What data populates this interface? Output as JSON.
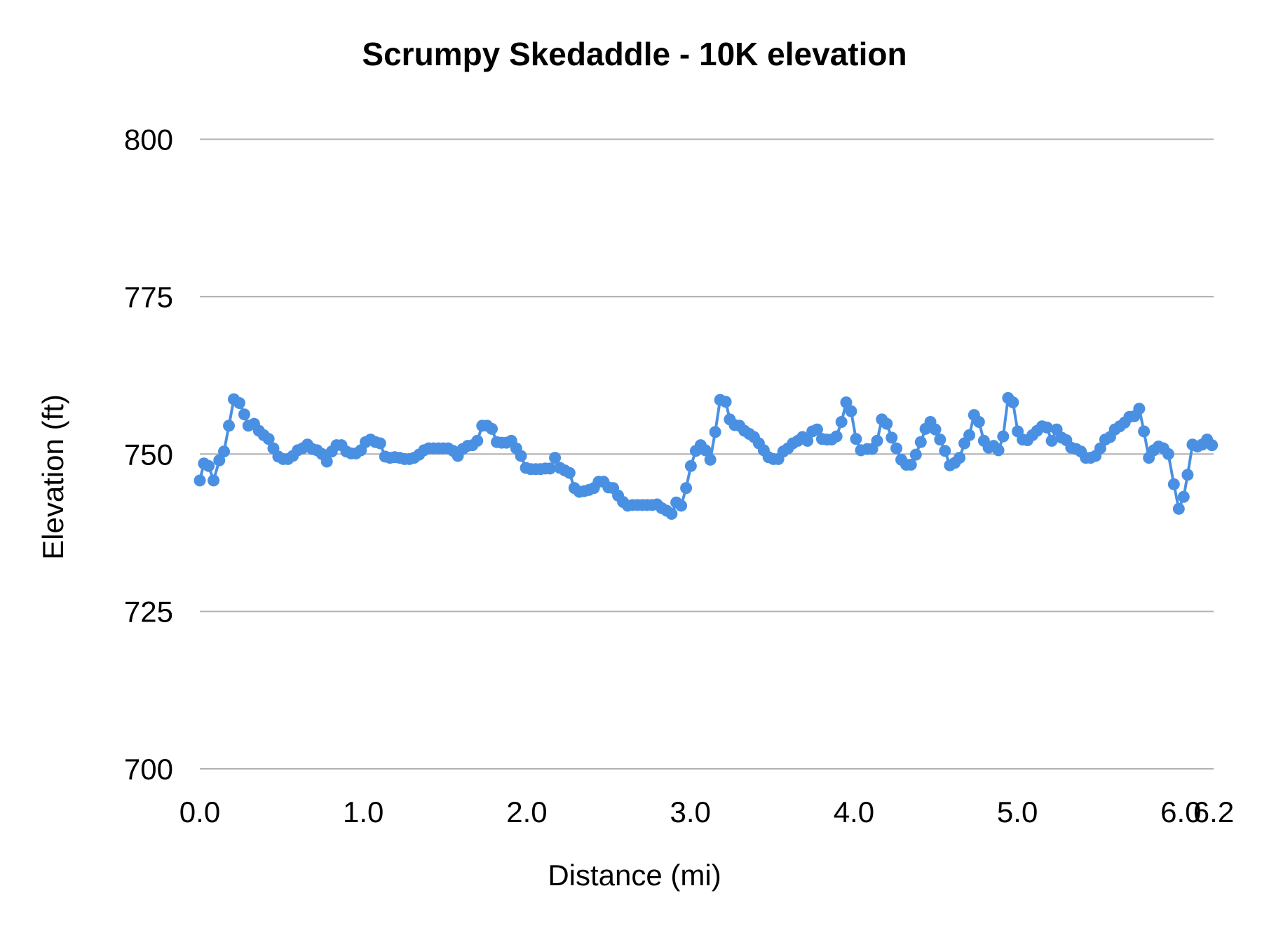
{
  "chart_data": {
    "type": "line",
    "title": "Scrumpy Skedaddle - 10K elevation",
    "xlabel": "Distance (mi)",
    "ylabel": "Elevation (ft)",
    "xlim": [
      0,
      6.2
    ],
    "ylim": [
      700,
      800
    ],
    "x_ticks": [
      "0.0",
      "1.0",
      "2.0",
      "3.0",
      "4.0",
      "5.0",
      "6.0",
      "6.2"
    ],
    "x_tick_values": [
      0,
      1,
      2,
      3,
      4,
      5,
      6,
      6.2
    ],
    "y_ticks": [
      "700",
      "725",
      "750",
      "775",
      "800"
    ],
    "y_tick_values": [
      700,
      725,
      750,
      775,
      800
    ],
    "grid": "horizontal",
    "markers": true,
    "color": "#4a90e2",
    "gridline_color": "#b0b0b0",
    "points": [
      [
        0.0,
        745.8
      ],
      [
        0.025,
        748.5
      ],
      [
        0.054,
        748.1
      ],
      [
        0.084,
        745.8
      ],
      [
        0.119,
        749.0
      ],
      [
        0.148,
        750.4
      ],
      [
        0.178,
        754.5
      ],
      [
        0.208,
        758.7
      ],
      [
        0.242,
        758.1
      ],
      [
        0.272,
        756.3
      ],
      [
        0.297,
        754.5
      ],
      [
        0.332,
        754.8
      ],
      [
        0.361,
        753.7
      ],
      [
        0.391,
        753.0
      ],
      [
        0.421,
        752.4
      ],
      [
        0.45,
        750.9
      ],
      [
        0.48,
        749.6
      ],
      [
        0.51,
        749.2
      ],
      [
        0.539,
        749.2
      ],
      [
        0.569,
        749.7
      ],
      [
        0.599,
        750.6
      ],
      [
        0.628,
        750.9
      ],
      [
        0.658,
        751.5
      ],
      [
        0.688,
        750.8
      ],
      [
        0.717,
        750.6
      ],
      [
        0.747,
        750.0
      ],
      [
        0.777,
        748.8
      ],
      [
        0.807,
        750.4
      ],
      [
        0.836,
        751.4
      ],
      [
        0.866,
        751.4
      ],
      [
        0.896,
        750.4
      ],
      [
        0.925,
        750.1
      ],
      [
        0.955,
        750.1
      ],
      [
        0.985,
        750.6
      ],
      [
        1.014,
        751.9
      ],
      [
        1.044,
        752.3
      ],
      [
        1.074,
        751.9
      ],
      [
        1.103,
        751.7
      ],
      [
        1.133,
        749.6
      ],
      [
        1.163,
        749.4
      ],
      [
        1.192,
        749.5
      ],
      [
        1.222,
        749.4
      ],
      [
        1.252,
        749.2
      ],
      [
        1.282,
        749.2
      ],
      [
        1.311,
        749.4
      ],
      [
        1.341,
        749.9
      ],
      [
        1.371,
        750.6
      ],
      [
        1.4,
        750.9
      ],
      [
        1.43,
        750.9
      ],
      [
        1.46,
        750.9
      ],
      [
        1.489,
        750.9
      ],
      [
        1.519,
        750.9
      ],
      [
        1.549,
        750.5
      ],
      [
        1.578,
        749.7
      ],
      [
        1.608,
        750.8
      ],
      [
        1.638,
        751.3
      ],
      [
        1.667,
        751.4
      ],
      [
        1.697,
        752.1
      ],
      [
        1.727,
        754.5
      ],
      [
        1.757,
        754.5
      ],
      [
        1.786,
        754.0
      ],
      [
        1.816,
        751.9
      ],
      [
        1.846,
        751.8
      ],
      [
        1.875,
        751.8
      ],
      [
        1.905,
        752.1
      ],
      [
        1.935,
        750.9
      ],
      [
        1.964,
        749.7
      ],
      [
        1.994,
        747.8
      ],
      [
        2.024,
        747.6
      ],
      [
        2.053,
        747.6
      ],
      [
        2.083,
        747.6
      ],
      [
        2.113,
        747.7
      ],
      [
        2.142,
        747.7
      ],
      [
        2.172,
        749.4
      ],
      [
        2.202,
        747.8
      ],
      [
        2.232,
        747.4
      ],
      [
        2.261,
        747.0
      ],
      [
        2.291,
        744.6
      ],
      [
        2.321,
        744.0
      ],
      [
        2.35,
        744.1
      ],
      [
        2.38,
        744.3
      ],
      [
        2.41,
        744.6
      ],
      [
        2.439,
        745.6
      ],
      [
        2.469,
        745.6
      ],
      [
        2.499,
        744.7
      ],
      [
        2.528,
        744.6
      ],
      [
        2.558,
        743.4
      ],
      [
        2.588,
        742.4
      ],
      [
        2.617,
        741.8
      ],
      [
        2.647,
        741.9
      ],
      [
        2.677,
        741.9
      ],
      [
        2.707,
        741.9
      ],
      [
        2.736,
        741.9
      ],
      [
        2.766,
        741.9
      ],
      [
        2.796,
        742.0
      ],
      [
        2.825,
        741.4
      ],
      [
        2.855,
        741.0
      ],
      [
        2.885,
        740.5
      ],
      [
        2.914,
        742.3
      ],
      [
        2.944,
        741.8
      ],
      [
        2.974,
        744.6
      ],
      [
        3.003,
        748.1
      ],
      [
        3.033,
        750.5
      ],
      [
        3.063,
        751.4
      ],
      [
        3.092,
        750.6
      ],
      [
        3.122,
        749.1
      ],
      [
        3.152,
        753.5
      ],
      [
        3.182,
        758.6
      ],
      [
        3.216,
        758.3
      ],
      [
        3.241,
        755.5
      ],
      [
        3.271,
        754.6
      ],
      [
        3.3,
        754.5
      ],
      [
        3.33,
        753.7
      ],
      [
        3.36,
        753.2
      ],
      [
        3.389,
        752.7
      ],
      [
        3.419,
        751.7
      ],
      [
        3.449,
        750.6
      ],
      [
        3.478,
        749.5
      ],
      [
        3.508,
        749.2
      ],
      [
        3.538,
        749.2
      ],
      [
        3.568,
        750.4
      ],
      [
        3.597,
        750.9
      ],
      [
        3.627,
        751.7
      ],
      [
        3.657,
        752.1
      ],
      [
        3.686,
        752.7
      ],
      [
        3.716,
        752.1
      ],
      [
        3.746,
        753.6
      ],
      [
        3.775,
        753.9
      ],
      [
        3.805,
        752.4
      ],
      [
        3.835,
        752.3
      ],
      [
        3.864,
        752.3
      ],
      [
        3.894,
        752.8
      ],
      [
        3.924,
        755.1
      ],
      [
        3.953,
        758.2
      ],
      [
        3.983,
        756.8
      ],
      [
        4.013,
        752.4
      ],
      [
        4.043,
        750.6
      ],
      [
        4.082,
        750.8
      ],
      [
        4.112,
        750.8
      ],
      [
        4.142,
        752.1
      ],
      [
        4.171,
        755.5
      ],
      [
        4.201,
        754.8
      ],
      [
        4.231,
        752.6
      ],
      [
        4.26,
        750.9
      ],
      [
        4.29,
        749.1
      ],
      [
        4.32,
        748.3
      ],
      [
        4.349,
        748.3
      ],
      [
        4.379,
        749.9
      ],
      [
        4.409,
        751.9
      ],
      [
        4.438,
        754.0
      ],
      [
        4.468,
        755.1
      ],
      [
        4.498,
        753.9
      ],
      [
        4.527,
        752.3
      ],
      [
        4.557,
        750.5
      ],
      [
        4.587,
        748.2
      ],
      [
        4.617,
        748.6
      ],
      [
        4.646,
        749.4
      ],
      [
        4.676,
        751.7
      ],
      [
        4.706,
        753.0
      ],
      [
        4.735,
        756.2
      ],
      [
        4.765,
        755.1
      ],
      [
        4.795,
        752.1
      ],
      [
        4.824,
        751.0
      ],
      [
        4.854,
        751.3
      ],
      [
        4.884,
        750.6
      ],
      [
        4.913,
        752.8
      ],
      [
        4.943,
        758.9
      ],
      [
        4.973,
        758.2
      ],
      [
        5.002,
        753.6
      ],
      [
        5.032,
        752.3
      ],
      [
        5.062,
        752.2
      ],
      [
        5.092,
        753.0
      ],
      [
        5.121,
        753.7
      ],
      [
        5.151,
        754.4
      ],
      [
        5.181,
        754.2
      ],
      [
        5.21,
        752.1
      ],
      [
        5.24,
        753.9
      ],
      [
        5.27,
        752.6
      ],
      [
        5.299,
        752.2
      ],
      [
        5.329,
        751.0
      ],
      [
        5.359,
        750.8
      ],
      [
        5.388,
        750.4
      ],
      [
        5.418,
        749.4
      ],
      [
        5.448,
        749.4
      ],
      [
        5.478,
        749.7
      ],
      [
        5.507,
        750.9
      ],
      [
        5.537,
        752.3
      ],
      [
        5.567,
        752.7
      ],
      [
        5.596,
        753.9
      ],
      [
        5.626,
        754.4
      ],
      [
        5.656,
        755.0
      ],
      [
        5.685,
        755.9
      ],
      [
        5.715,
        756.0
      ],
      [
        5.745,
        757.2
      ],
      [
        5.774,
        753.6
      ],
      [
        5.804,
        749.4
      ],
      [
        5.834,
        750.6
      ],
      [
        5.863,
        751.2
      ],
      [
        5.893,
        750.9
      ],
      [
        5.923,
        750.0
      ],
      [
        5.957,
        745.2
      ],
      [
        5.987,
        741.3
      ],
      [
        6.017,
        743.2
      ],
      [
        6.041,
        746.7
      ],
      [
        6.071,
        751.5
      ],
      [
        6.101,
        751.2
      ],
      [
        6.13,
        751.5
      ],
      [
        6.16,
        752.3
      ],
      [
        6.19,
        751.4
      ]
    ]
  }
}
